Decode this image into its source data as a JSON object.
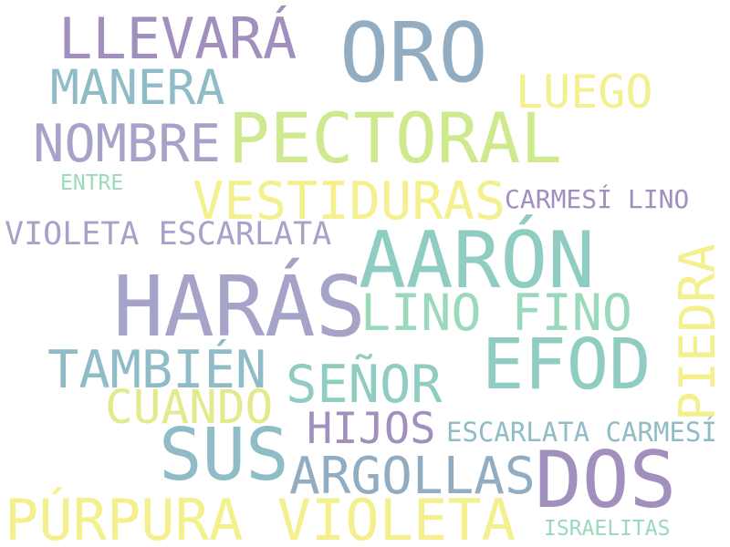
{
  "palette": {
    "purple": "#a18fbd",
    "slate_blue": "#92adc2",
    "lavender": "#a6a3c9",
    "teal": "#8fcdc2",
    "mint": "#9ad9bb",
    "light_green": "#cfe98f",
    "light_yellow": "#f3f08d",
    "yellow_green": "#e3ea8c",
    "cyan_gray": "#8fbcc6"
  },
  "words": {
    "oro": "ORO",
    "llevara": "LLEVARÁ",
    "manera": "MANERA",
    "luego": "LUEGO",
    "nombre": "NOMBRE",
    "pectoral": "PECTORAL",
    "entre": "ENTRE",
    "vestiduras": "VESTIDURAS",
    "carmesi_lino": "CARMESÍ LINO",
    "violeta_escarlata": "VIOLETA ESCARLATA",
    "aaron": "AARÓN",
    "piedra": "PIEDRA",
    "haras": "HARÁS",
    "lino_fino": "LINO FINO",
    "efod": "EFOD",
    "tambien": "TAMBIÉN",
    "senor": "SEÑOR",
    "cuando": "CUANDO",
    "hijos": "HIJOS",
    "escarlata_carmesi": "ESCARLATA CARMESÍ",
    "sus": "SUS",
    "argollas": "ARGOLLAS",
    "dos": "DOS",
    "purpura_violeta": "PÚRPURA VIOLETA",
    "israelitas": "ISRAELITAS"
  }
}
